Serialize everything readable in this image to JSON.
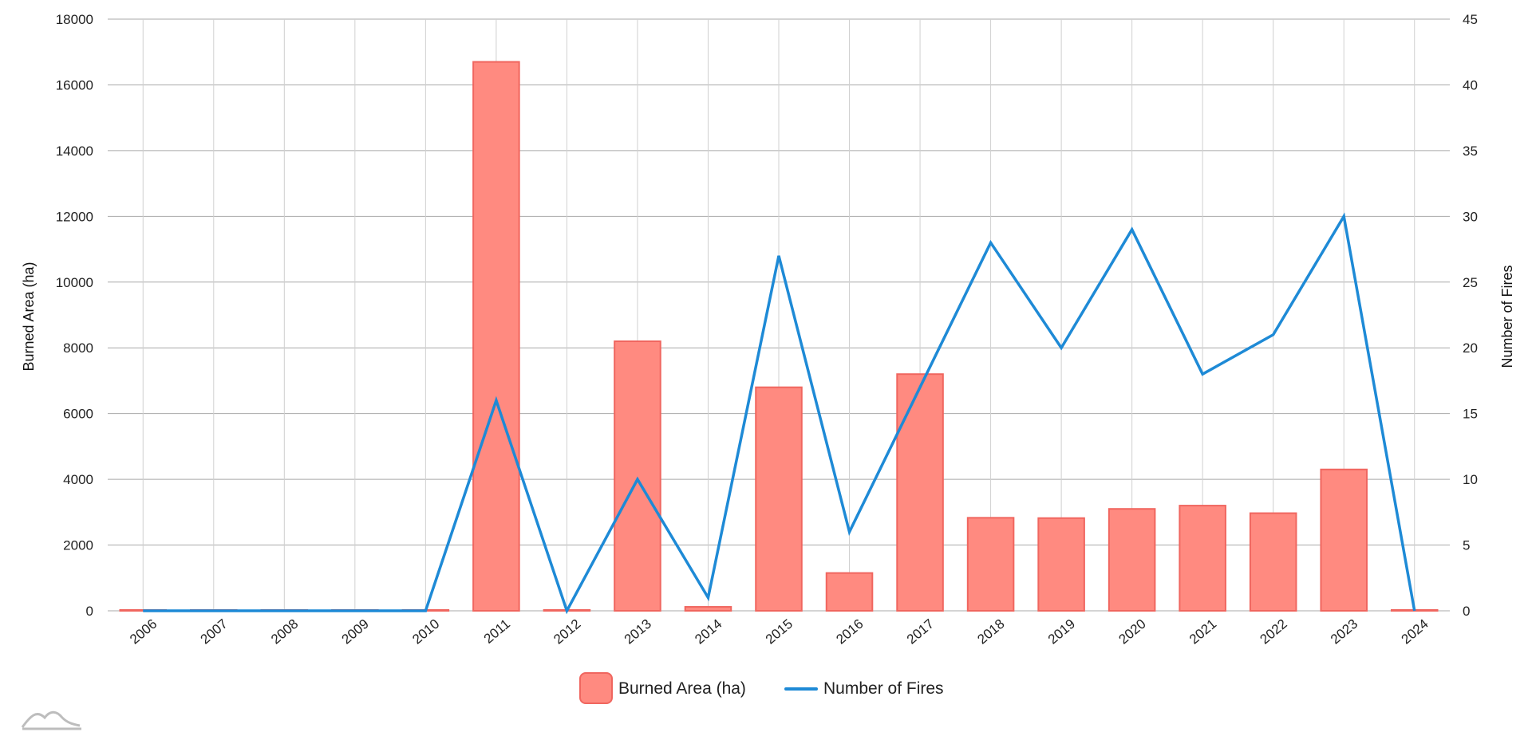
{
  "chart_data": {
    "type": "bar",
    "categories": [
      "2006",
      "2007",
      "2008",
      "2009",
      "2010",
      "2011",
      "2012",
      "2013",
      "2014",
      "2015",
      "2016",
      "2017",
      "2018",
      "2019",
      "2020",
      "2021",
      "2022",
      "2023",
      "2024"
    ],
    "series": [
      {
        "name": "Burned Area (ha)",
        "type": "bar",
        "axis": "left",
        "color": "#ff8a80",
        "stroke": "#f0665f",
        "values": [
          0,
          0,
          0,
          0,
          0,
          16700,
          0,
          8200,
          120,
          6800,
          1150,
          7200,
          2830,
          2820,
          3100,
          3200,
          2970,
          4300,
          0
        ]
      },
      {
        "name": "Number of Fires",
        "type": "line",
        "axis": "right",
        "color": "#1e8ad6",
        "values": [
          0,
          0,
          0,
          0,
          0,
          16,
          0,
          10,
          1,
          27,
          6,
          17,
          28,
          20,
          29,
          18,
          21,
          30,
          0
        ]
      }
    ],
    "y_left": {
      "label": "Burned Area (ha)",
      "min": 0,
      "max": 18000,
      "ticks": [
        "0",
        "2000",
        "4000",
        "6000",
        "8000",
        "10000",
        "12000",
        "14000",
        "16000",
        "18000"
      ]
    },
    "y_right": {
      "label": "Number of Fires",
      "min": 0,
      "max": 45,
      "ticks": [
        "0",
        "5",
        "10",
        "15",
        "20",
        "25",
        "30",
        "35",
        "40",
        "45"
      ]
    },
    "grid": true,
    "legend": {
      "position": "bottom-center"
    }
  },
  "watermark_icon": "mountain-logo-icon"
}
